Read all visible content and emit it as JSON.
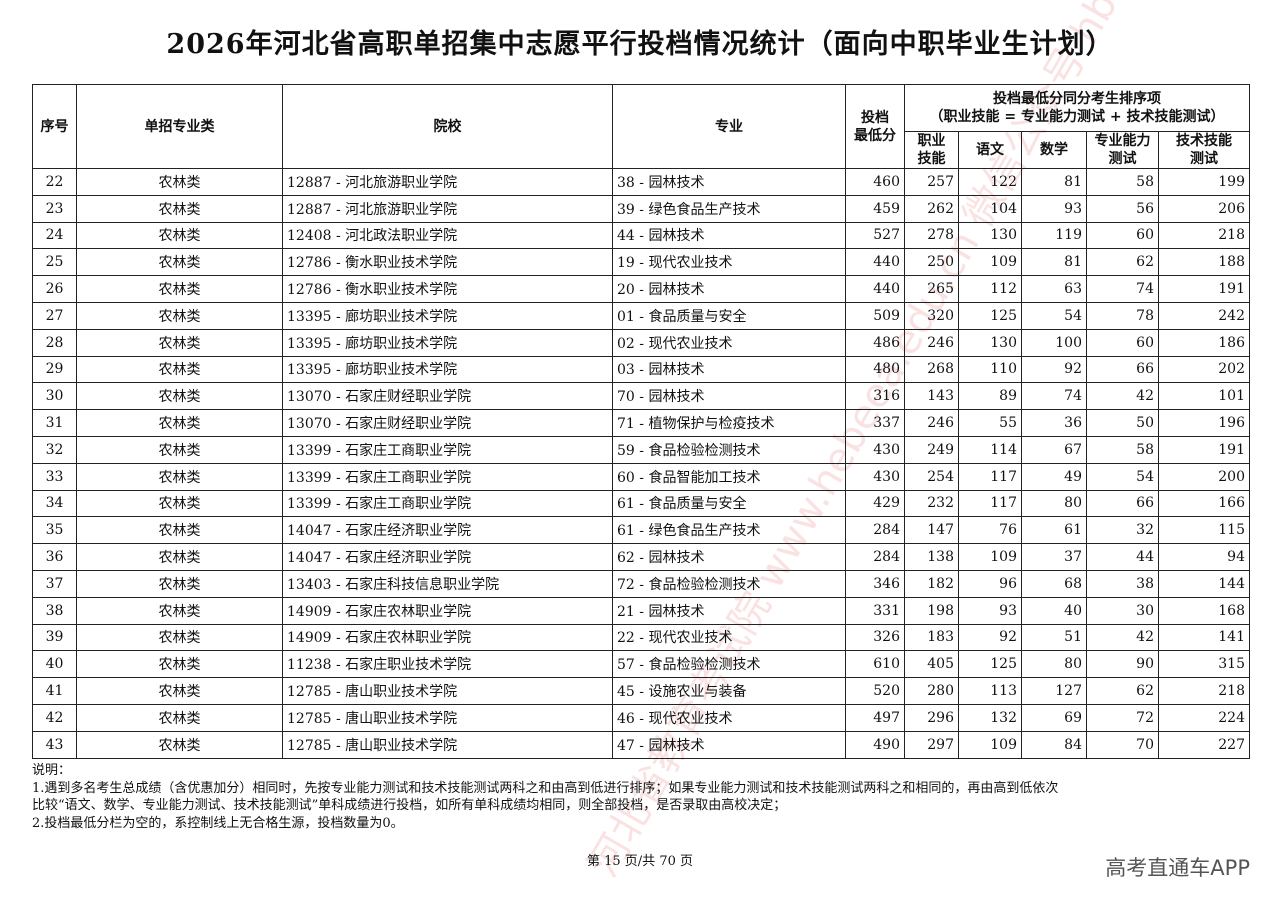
{
  "title": "2026年河北省高职单招集中志愿平行投档情况统计（面向中职毕业生计划）",
  "headers": {
    "seq": "序号",
    "category": "单招专业类",
    "school": "院校",
    "major": "专业",
    "min_score": "投档\n最低分",
    "group": "投档最低分同分考生排序项",
    "group_sub": "（职业技能 = 专业能力测试 + 技术技能测试）",
    "skill": "职业\n技能",
    "chinese": "语文",
    "math": "数学",
    "prof": "专业能力\n测试",
    "tech": "技术技能\n测试"
  },
  "rows": [
    [
      "22",
      "农林类",
      "12887 - 河北旅游职业学院",
      "38 - 园林技术",
      "460",
      "257",
      "122",
      "81",
      "58",
      "199"
    ],
    [
      "23",
      "农林类",
      "12887 - 河北旅游职业学院",
      "39 - 绿色食品生产技术",
      "459",
      "262",
      "104",
      "93",
      "56",
      "206"
    ],
    [
      "24",
      "农林类",
      "12408 - 河北政法职业学院",
      "44 - 园林技术",
      "527",
      "278",
      "130",
      "119",
      "60",
      "218"
    ],
    [
      "25",
      "农林类",
      "12786 - 衡水职业技术学院",
      "19 - 现代农业技术",
      "440",
      "250",
      "109",
      "81",
      "62",
      "188"
    ],
    [
      "26",
      "农林类",
      "12786 - 衡水职业技术学院",
      "20 - 园林技术",
      "440",
      "265",
      "112",
      "63",
      "74",
      "191"
    ],
    [
      "27",
      "农林类",
      "13395 - 廊坊职业技术学院",
      "01 - 食品质量与安全",
      "509",
      "320",
      "125",
      "54",
      "78",
      "242"
    ],
    [
      "28",
      "农林类",
      "13395 - 廊坊职业技术学院",
      "02 - 现代农业技术",
      "486",
      "246",
      "130",
      "100",
      "60",
      "186"
    ],
    [
      "29",
      "农林类",
      "13395 - 廊坊职业技术学院",
      "03 - 园林技术",
      "480",
      "268",
      "110",
      "92",
      "66",
      "202"
    ],
    [
      "30",
      "农林类",
      "13070 - 石家庄财经职业学院",
      "70 - 园林技术",
      "316",
      "143",
      "89",
      "74",
      "42",
      "101"
    ],
    [
      "31",
      "农林类",
      "13070 - 石家庄财经职业学院",
      "71 - 植物保护与检疫技术",
      "337",
      "246",
      "55",
      "36",
      "50",
      "196"
    ],
    [
      "32",
      "农林类",
      "13399 - 石家庄工商职业学院",
      "59 - 食品检验检测技术",
      "430",
      "249",
      "114",
      "67",
      "58",
      "191"
    ],
    [
      "33",
      "农林类",
      "13399 - 石家庄工商职业学院",
      "60 - 食品智能加工技术",
      "430",
      "254",
      "117",
      "49",
      "54",
      "200"
    ],
    [
      "34",
      "农林类",
      "13399 - 石家庄工商职业学院",
      "61 - 食品质量与安全",
      "429",
      "232",
      "117",
      "80",
      "66",
      "166"
    ],
    [
      "35",
      "农林类",
      "14047 - 石家庄经济职业学院",
      "61 - 绿色食品生产技术",
      "284",
      "147",
      "76",
      "61",
      "32",
      "115"
    ],
    [
      "36",
      "农林类",
      "14047 - 石家庄经济职业学院",
      "62 - 园林技术",
      "284",
      "138",
      "109",
      "37",
      "44",
      "94"
    ],
    [
      "37",
      "农林类",
      "13403 - 石家庄科技信息职业学院",
      "72 - 食品检验检测技术",
      "346",
      "182",
      "96",
      "68",
      "38",
      "144"
    ],
    [
      "38",
      "农林类",
      "14909 - 石家庄农林职业学院",
      "21 - 园林技术",
      "331",
      "198",
      "93",
      "40",
      "30",
      "168"
    ],
    [
      "39",
      "农林类",
      "14909 - 石家庄农林职业学院",
      "22 - 现代农业技术",
      "326",
      "183",
      "92",
      "51",
      "42",
      "141"
    ],
    [
      "40",
      "农林类",
      "11238 - 石家庄职业技术学院",
      "57 - 食品检验检测技术",
      "610",
      "405",
      "125",
      "80",
      "90",
      "315"
    ],
    [
      "41",
      "农林类",
      "12785 - 唐山职业技术学院",
      "45 - 设施农业与装备",
      "520",
      "280",
      "113",
      "127",
      "62",
      "218"
    ],
    [
      "42",
      "农林类",
      "12785 - 唐山职业技术学院",
      "46 - 现代农业技术",
      "497",
      "296",
      "132",
      "69",
      "72",
      "224"
    ],
    [
      "43",
      "农林类",
      "12785 - 唐山职业技术学院",
      "47 - 园林技术",
      "490",
      "297",
      "109",
      "84",
      "70",
      "227"
    ]
  ],
  "notes": {
    "label": "说明：",
    "n1": "1.遇到多名考生总成绩（含优惠加分）相同时，先按专业能力测试和技术技能测试两科之和由高到低进行排序；如果专业能力测试和技术技能测试两科之和相同的，再由高到低依次",
    "n1b": "比较“语文、数学、专业能力测试、技术技能测试”单科成绩进行投档，如所有单科成绩均相同，则全部投档，是否录取由高校决定；",
    "n2": "2.投档最低分栏为空的，系控制线上无合格生源，投档数量为0。"
  },
  "pager": "第 15 页/共 70 页",
  "brand": "高考直通车APP",
  "watermark": "河北省教育考试院 www.hebeea.edu.cn 微信公众号 hbksy"
}
